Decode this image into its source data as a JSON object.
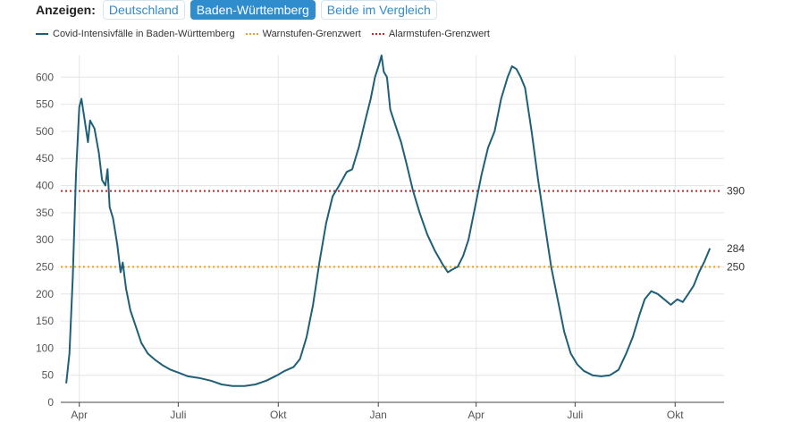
{
  "controls": {
    "label": "Anzeigen:",
    "tabs": [
      {
        "label": "Deutschland",
        "active": false
      },
      {
        "label": "Baden-Württemberg",
        "active": true
      },
      {
        "label": "Beide im Vergleich",
        "active": false
      }
    ]
  },
  "chart_data": {
    "type": "line",
    "series": [
      {
        "name": "Covid-Intensivfälle in Baden-Württemberg",
        "color": "#1f5f78",
        "points": [
          [
            "2020-03-20",
            35
          ],
          [
            "2020-03-23",
            90
          ],
          [
            "2020-03-26",
            230
          ],
          [
            "2020-03-29",
            420
          ],
          [
            "2020-04-01",
            545
          ],
          [
            "2020-04-03",
            560
          ],
          [
            "2020-04-06",
            520
          ],
          [
            "2020-04-09",
            480
          ],
          [
            "2020-04-11",
            520
          ],
          [
            "2020-04-15",
            505
          ],
          [
            "2020-04-19",
            460
          ],
          [
            "2020-04-22",
            410
          ],
          [
            "2020-04-25",
            400
          ],
          [
            "2020-04-27",
            430
          ],
          [
            "2020-04-29",
            360
          ],
          [
            "2020-05-02",
            340
          ],
          [
            "2020-05-06",
            290
          ],
          [
            "2020-05-09",
            240
          ],
          [
            "2020-05-11",
            258
          ],
          [
            "2020-05-14",
            210
          ],
          [
            "2020-05-18",
            170
          ],
          [
            "2020-05-23",
            140
          ],
          [
            "2020-05-28",
            110
          ],
          [
            "2020-06-03",
            90
          ],
          [
            "2020-06-10",
            78
          ],
          [
            "2020-06-17",
            68
          ],
          [
            "2020-06-24",
            60
          ],
          [
            "2020-07-01",
            55
          ],
          [
            "2020-07-10",
            48
          ],
          [
            "2020-07-20",
            45
          ],
          [
            "2020-07-31",
            40
          ],
          [
            "2020-08-10",
            33
          ],
          [
            "2020-08-20",
            30
          ],
          [
            "2020-08-31",
            30
          ],
          [
            "2020-09-10",
            33
          ],
          [
            "2020-09-20",
            40
          ],
          [
            "2020-09-30",
            50
          ],
          [
            "2020-10-07",
            58
          ],
          [
            "2020-10-15",
            65
          ],
          [
            "2020-10-21",
            80
          ],
          [
            "2020-10-27",
            120
          ],
          [
            "2020-11-02",
            180
          ],
          [
            "2020-11-08",
            260
          ],
          [
            "2020-11-14",
            330
          ],
          [
            "2020-11-20",
            380
          ],
          [
            "2020-11-26",
            400
          ],
          [
            "2020-12-03",
            425
          ],
          [
            "2020-12-08",
            430
          ],
          [
            "2020-12-14",
            470
          ],
          [
            "2020-12-20",
            520
          ],
          [
            "2020-12-25",
            560
          ],
          [
            "2020-12-29",
            600
          ],
          [
            "2021-01-02",
            625
          ],
          [
            "2021-01-04",
            640
          ],
          [
            "2021-01-06",
            610
          ],
          [
            "2021-01-09",
            600
          ],
          [
            "2021-01-12",
            540
          ],
          [
            "2021-01-17",
            510
          ],
          [
            "2021-01-22",
            480
          ],
          [
            "2021-01-27",
            440
          ],
          [
            "2021-02-02",
            390
          ],
          [
            "2021-02-08",
            350
          ],
          [
            "2021-02-15",
            310
          ],
          [
            "2021-02-22",
            280
          ],
          [
            "2021-03-01",
            255
          ],
          [
            "2021-03-06",
            240
          ],
          [
            "2021-03-10",
            245
          ],
          [
            "2021-03-15",
            250
          ],
          [
            "2021-03-20",
            270
          ],
          [
            "2021-03-25",
            300
          ],
          [
            "2021-03-31",
            360
          ],
          [
            "2021-04-06",
            420
          ],
          [
            "2021-04-12",
            470
          ],
          [
            "2021-04-18",
            500
          ],
          [
            "2021-04-24",
            560
          ],
          [
            "2021-04-30",
            600
          ],
          [
            "2021-05-04",
            620
          ],
          [
            "2021-05-08",
            615
          ],
          [
            "2021-05-12",
            600
          ],
          [
            "2021-05-16",
            580
          ],
          [
            "2021-05-22",
            500
          ],
          [
            "2021-05-28",
            410
          ],
          [
            "2021-06-03",
            330
          ],
          [
            "2021-06-09",
            250
          ],
          [
            "2021-06-15",
            190
          ],
          [
            "2021-06-21",
            130
          ],
          [
            "2021-06-27",
            90
          ],
          [
            "2021-07-03",
            70
          ],
          [
            "2021-07-09",
            58
          ],
          [
            "2021-07-17",
            50
          ],
          [
            "2021-07-25",
            48
          ],
          [
            "2021-08-02",
            50
          ],
          [
            "2021-08-10",
            60
          ],
          [
            "2021-08-17",
            90
          ],
          [
            "2021-08-23",
            120
          ],
          [
            "2021-08-29",
            160
          ],
          [
            "2021-09-03",
            190
          ],
          [
            "2021-09-09",
            205
          ],
          [
            "2021-09-15",
            200
          ],
          [
            "2021-09-21",
            190
          ],
          [
            "2021-09-27",
            180
          ],
          [
            "2021-10-03",
            190
          ],
          [
            "2021-10-08",
            185
          ],
          [
            "2021-10-13",
            200
          ],
          [
            "2021-10-18",
            215
          ],
          [
            "2021-10-23",
            240
          ],
          [
            "2021-10-28",
            260
          ],
          [
            "2021-11-02",
            284
          ]
        ]
      },
      {
        "name": "Warnstufen-Grenzwert",
        "color": "#f0a020",
        "value": 250
      },
      {
        "name": "Alarmstufen-Grenzwert",
        "color": "#c0282d",
        "value": 390
      }
    ],
    "end_labels": [
      "284",
      "250",
      "390"
    ],
    "x_ticks": [
      {
        "label": "Apr",
        "date": "2020-04-01"
      },
      {
        "label": "Juli",
        "date": "2020-07-01"
      },
      {
        "label": "Okt",
        "date": "2020-10-01"
      },
      {
        "label": "Jan",
        "date": "2021-01-01"
      },
      {
        "label": "Apr",
        "date": "2021-04-01"
      },
      {
        "label": "Juli",
        "date": "2021-07-01"
      },
      {
        "label": "Okt",
        "date": "2021-10-01"
      }
    ],
    "x_range": [
      "2020-03-15",
      "2021-11-15"
    ],
    "y_ticks": [
      0,
      50,
      100,
      150,
      200,
      250,
      300,
      350,
      400,
      450,
      500,
      550,
      600
    ],
    "ylim": [
      0,
      640
    ],
    "grid": true,
    "legend_position": "top-left"
  }
}
